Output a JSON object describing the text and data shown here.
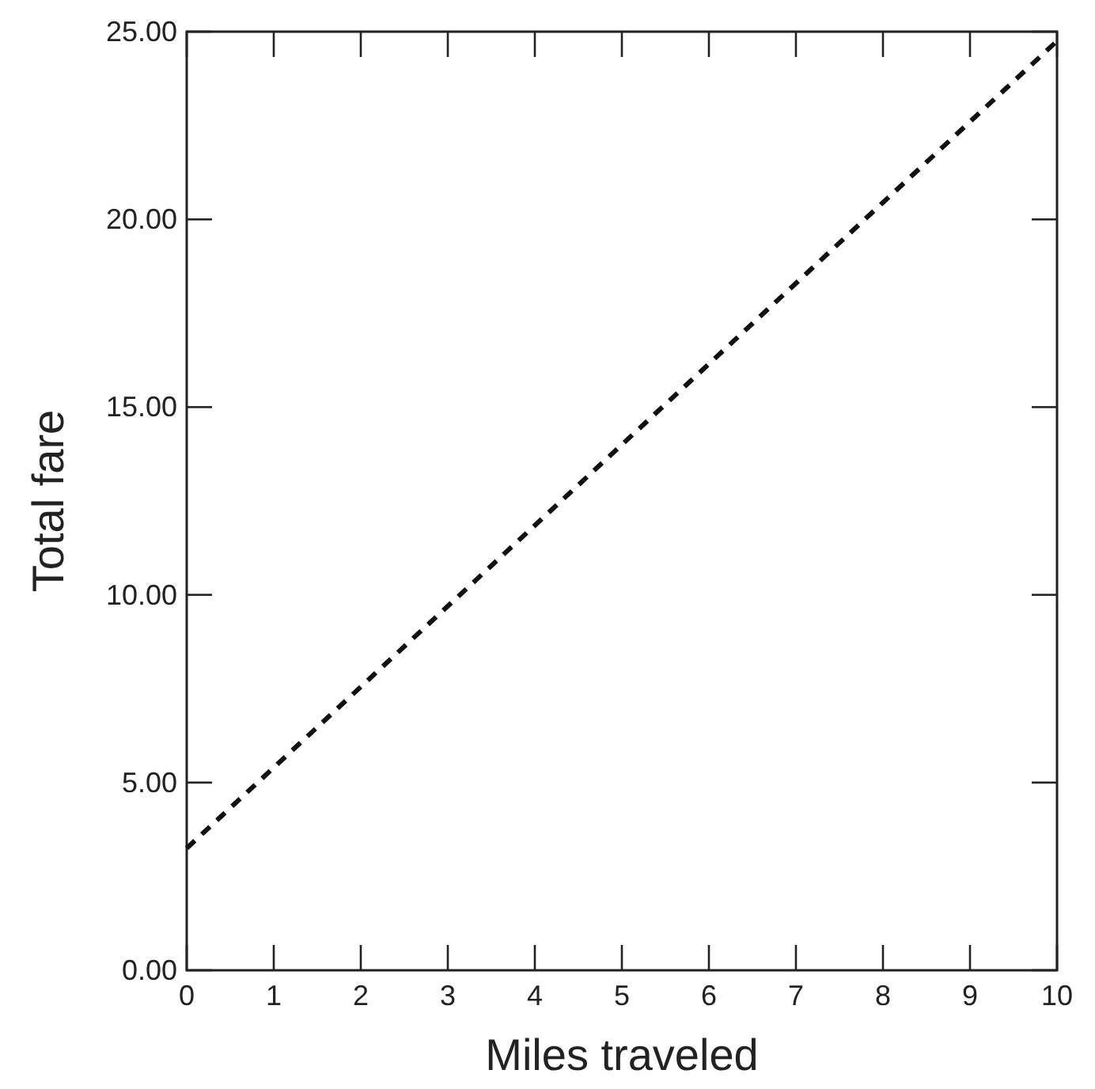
{
  "chart_data": {
    "type": "line",
    "xlabel": "Miles traveled",
    "ylabel": "Total fare",
    "x": [
      0,
      10
    ],
    "series": [
      {
        "color": "#111111",
        "values": [
          3.25,
          24.75
        ]
      }
    ],
    "line_style": "dashed",
    "marker": "none",
    "xlim": [
      0,
      10
    ],
    "xticks": [
      0,
      1,
      2,
      3,
      4,
      5,
      6,
      7,
      8,
      9,
      10
    ],
    "ylim": [
      0,
      25
    ],
    "yticks": [
      {
        "value": 0,
        "label": "0.00"
      },
      {
        "value": 5,
        "label": "5.00"
      },
      {
        "value": 10,
        "label": "10.00"
      },
      {
        "value": 15,
        "label": "15.00"
      },
      {
        "value": 20,
        "label": "20.00"
      },
      {
        "value": 25,
        "label": "25.00"
      }
    ]
  }
}
